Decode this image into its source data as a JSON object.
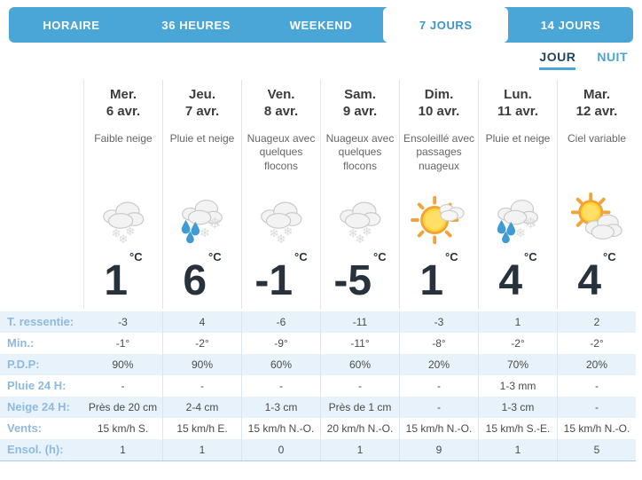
{
  "nav": {
    "tabs": [
      {
        "label": "HORAIRE",
        "active": false
      },
      {
        "label": "36 HEURES",
        "active": false
      },
      {
        "label": "WEEKEND",
        "active": false
      },
      {
        "label": "7 JOURS",
        "active": true
      },
      {
        "label": "14 JOURS",
        "active": false
      }
    ]
  },
  "view_toggle": {
    "day_label": "JOUR",
    "night_label": "NUIT",
    "selected": "JOUR"
  },
  "days": [
    {
      "name": "Mer.",
      "date": "6 avr.",
      "condition": "Faible neige",
      "icon": "cloud-snow",
      "temp": "1",
      "temp_unit": "°C"
    },
    {
      "name": "Jeu.",
      "date": "7 avr.",
      "condition": "Pluie et neige",
      "icon": "cloud-rain-snow",
      "temp": "6",
      "temp_unit": "°C"
    },
    {
      "name": "Ven.",
      "date": "8 avr.",
      "condition": "Nuageux avec quelques flocons",
      "icon": "cloud-snow",
      "temp": "-1",
      "temp_unit": "°C"
    },
    {
      "name": "Sam.",
      "date": "9 avr.",
      "condition": "Nuageux avec quelques flocons",
      "icon": "cloud-snow",
      "temp": "-5",
      "temp_unit": "°C"
    },
    {
      "name": "Dim.",
      "date": "10 avr.",
      "condition": "Ensoleillé avec passages nuageux",
      "icon": "sun-clouds",
      "temp": "1",
      "temp_unit": "°C"
    },
    {
      "name": "Lun.",
      "date": "11 avr.",
      "condition": "Pluie et neige",
      "icon": "cloud-rain-snow",
      "temp": "4",
      "temp_unit": "°C"
    },
    {
      "name": "Mar.",
      "date": "12 avr.",
      "condition": "Ciel variable",
      "icon": "sun-cloud",
      "temp": "4",
      "temp_unit": "°C"
    }
  ],
  "rows": [
    {
      "label": "T. ressentie:",
      "values": [
        "-3",
        "4",
        "-6",
        "-11",
        "-3",
        "1",
        "2"
      ]
    },
    {
      "label": "Min.:",
      "values": [
        "-1°",
        "-2°",
        "-9°",
        "-11°",
        "-8°",
        "-2°",
        "-2°"
      ]
    },
    {
      "label": "P.D.P:",
      "values": [
        "90%",
        "90%",
        "60%",
        "60%",
        "20%",
        "70%",
        "20%"
      ]
    },
    {
      "label": "Pluie 24 H:",
      "values": [
        "-",
        "-",
        "-",
        "-",
        "-",
        "1-3 mm",
        "-"
      ]
    },
    {
      "label": "Neige 24 H:",
      "values": [
        "Près de 20 cm",
        "2-4 cm",
        "1-3 cm",
        "Près de 1 cm",
        "-",
        "1-3 cm",
        "-"
      ]
    },
    {
      "label": "Vents:",
      "values": [
        "15 km/h S.",
        "15 km/h E.",
        "15 km/h N.-O.",
        "20 km/h N.-O.",
        "15 km/h N.-O.",
        "15 km/h S.-E.",
        "15 km/h N.-O."
      ]
    },
    {
      "label": "Ensol. (h):",
      "values": [
        "1",
        "1",
        "0",
        "1",
        "9",
        "1",
        "5"
      ]
    }
  ],
  "colors": {
    "nav_blue": "#4ba6d8",
    "active_tab_text": "#3d96c9",
    "toggle_active_text": "#20465f",
    "row_stripe": "#e8f2fa",
    "row_label": "#8fbadd",
    "table_bottom_rule": "#a9cde9"
  }
}
